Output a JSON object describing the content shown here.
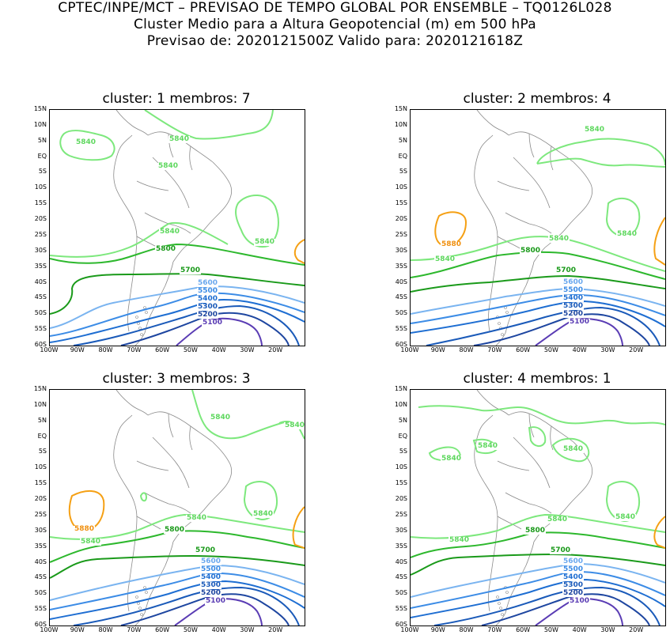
{
  "header": {
    "line1": "CPTEC/INPE/MCT – PREVISAO DE TEMPO GLOBAL POR ENSEMBLE – TQ0126L028",
    "line2": "Cluster Medio para a Altura Geopotencial (m) em 500 hPa",
    "line3": "Previsao de: 2020121500Z   Valido para: 2020121618Z"
  },
  "axes": {
    "lat_labels": [
      "15N",
      "10N",
      "5N",
      "EQ",
      "5S",
      "10S",
      "15S",
      "20S",
      "25S",
      "30S",
      "35S",
      "40S",
      "45S",
      "50S",
      "55S",
      "60S"
    ],
    "lon_labels": [
      "100W",
      "90W",
      "80W",
      "70W",
      "60W",
      "50W",
      "40W",
      "30W",
      "20W"
    ]
  },
  "colors": {
    "c5840": "#7de87d",
    "c5800": "#2db82d",
    "c5700": "#1a9a1a",
    "c5600": "#7ab4f0",
    "c5500": "#3c8ce6",
    "c5400": "#1e6ed2",
    "c5300": "#1a5ab9",
    "c5200": "#1e46a0",
    "c5100": "#5a3cb4",
    "c5880": "#f5a014",
    "land": "#888888"
  },
  "panels": [
    {
      "title": "cluster: 1   membros: 7",
      "labels": {
        "l5840a": "5840",
        "l5840b": "5840",
        "l5840c": "5840",
        "l5840d": "5840",
        "l5840e": "5840",
        "l5800": "5800",
        "l5700": "5700",
        "l5600": "5600",
        "l5500": "5500",
        "l5400": "5400",
        "l5300": "5300",
        "l5200": "5200",
        "l5100": "5100"
      }
    },
    {
      "title": "cluster: 2   membros: 4",
      "labels": {
        "l5840a": "5840",
        "l5840b": "5840",
        "l5840c": "5840",
        "l5840d": "5840",
        "l5880": "5880",
        "l5800": "5800",
        "l5700": "5700",
        "l5600": "5600",
        "l5500": "5500",
        "l5400": "5400",
        "l5300": "5300",
        "l5200": "5200",
        "l5100": "5100"
      }
    },
    {
      "title": "cluster: 3   membros: 3",
      "labels": {
        "l5840a": "5840",
        "l5840b": "5840",
        "l5840c": "5840",
        "l5840d": "5840",
        "l5840e": "5840",
        "l5880": "5880",
        "l5800": "5800",
        "l5700": "5700",
        "l5600": "5600",
        "l5500": "5500",
        "l5400": "5400",
        "l5300": "5300",
        "l5200": "5200",
        "l5100": "5100"
      }
    },
    {
      "title": "cluster: 4   membros: 1",
      "labels": {
        "l5840a": "5840",
        "l5840b": "5840",
        "l5840c": "5840",
        "l5840d": "5840",
        "l5840e": "5840",
        "l5840f": "5840",
        "l5800": "5800",
        "l5700": "5700",
        "l5600": "5600",
        "l5500": "5500",
        "l5400": "5400",
        "l5300": "5300",
        "l5200": "5200",
        "l5100": "5100"
      }
    }
  ]
}
